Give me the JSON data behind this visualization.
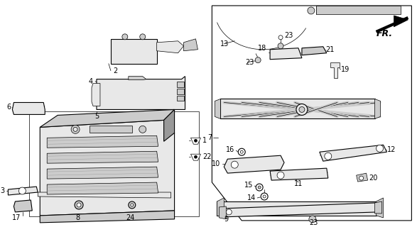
{
  "bg_color": "#ffffff",
  "fig_width": 5.87,
  "fig_height": 3.2,
  "dpi": 100,
  "lw_thin": 0.5,
  "lw_med": 0.8,
  "lw_thick": 1.5,
  "gray_light": "#e8e8e8",
  "gray_mid": "#cccccc",
  "gray_dark": "#999999"
}
